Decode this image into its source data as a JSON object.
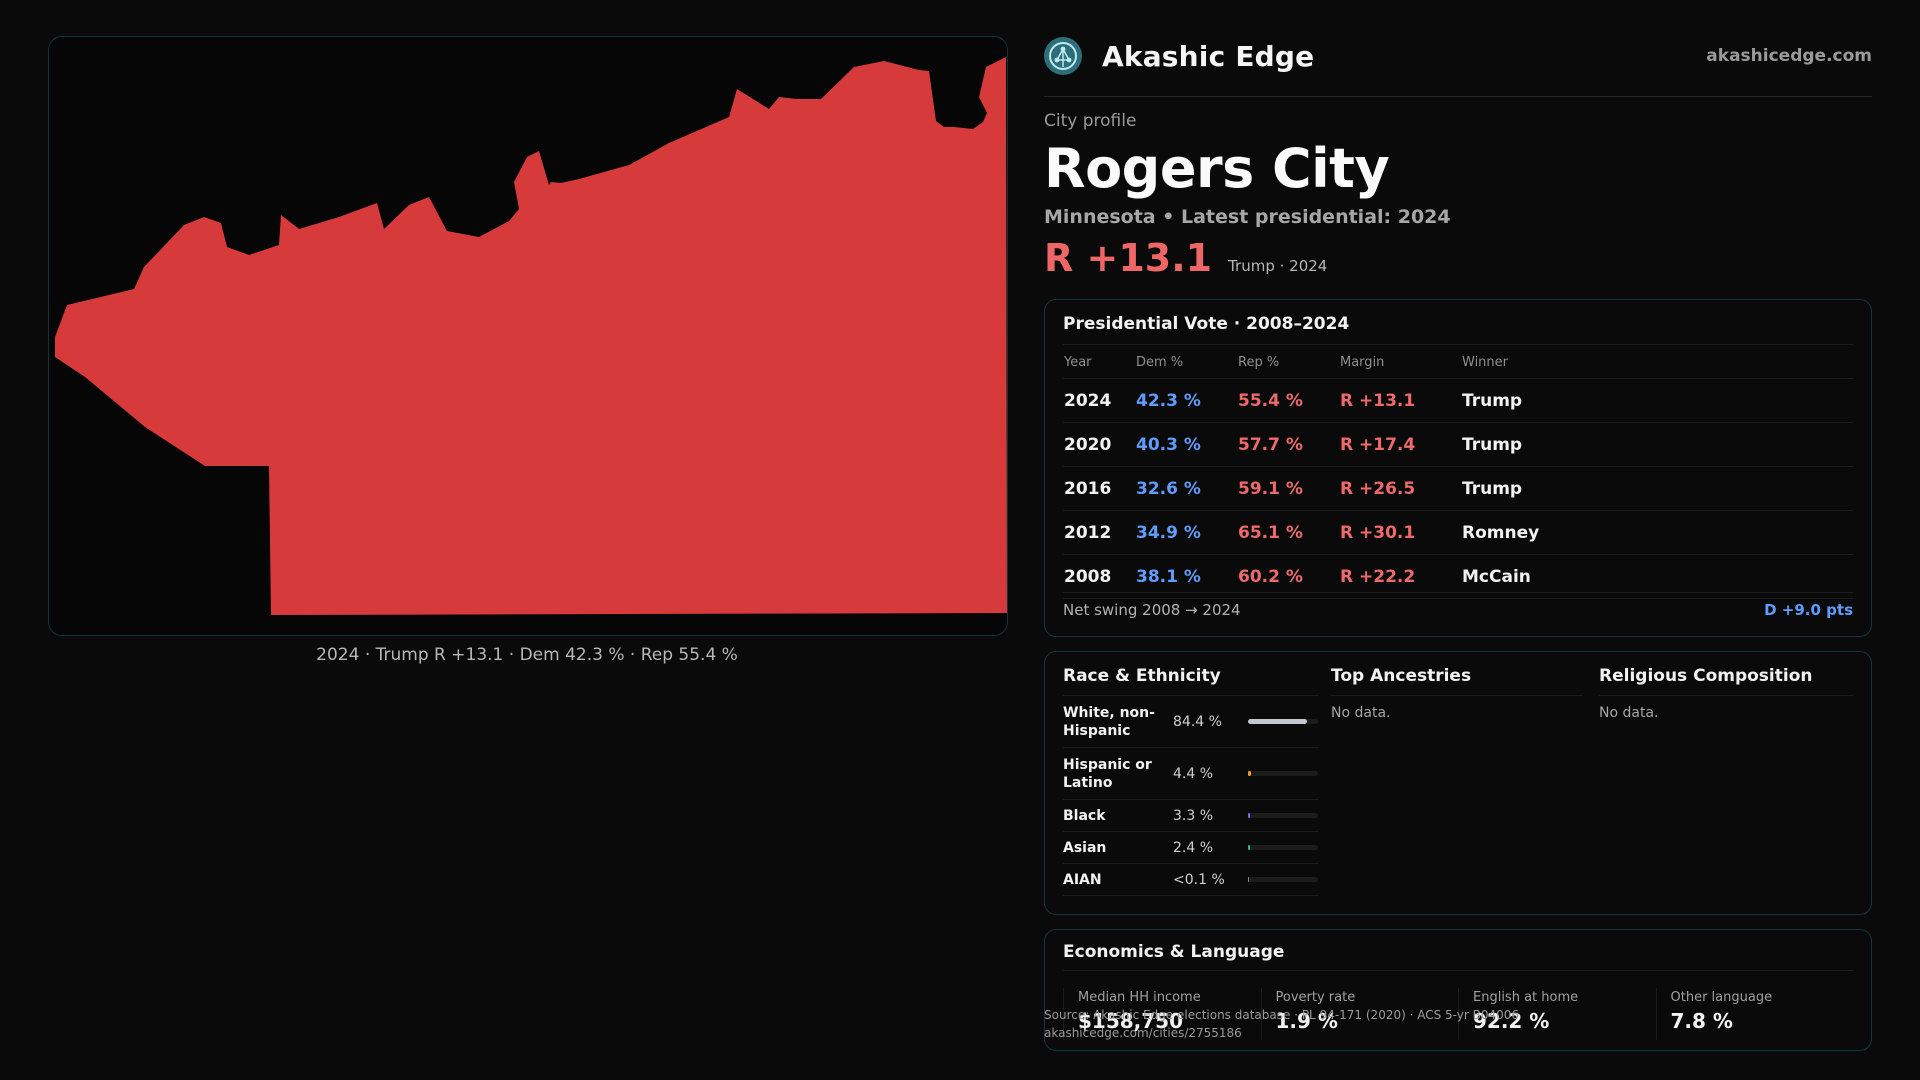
{
  "map": {
    "fill_color": "#d63a3a",
    "caption": "2024 · Trump R +13.1 · Dem 42.3 % · Rep 55.4 %"
  },
  "brand": {
    "name": "Akashic Edge",
    "url": "akashicedge.com",
    "logo_icon": "network-globe-icon"
  },
  "profile": {
    "kicker": "City profile",
    "name": "Rogers City",
    "subline": "Minnesota • Latest presidential: 2024",
    "margin": "R +13.1",
    "margin_sub": "Trump · 2024"
  },
  "vote_card": {
    "title": "Presidential Vote · 2008–2024",
    "headers": [
      "Year",
      "Dem %",
      "Rep %",
      "Margin",
      "Winner"
    ],
    "rows": [
      [
        "2024",
        "42.3 %",
        "55.4 %",
        "R +13.1",
        "Trump"
      ],
      [
        "2020",
        "40.3 %",
        "57.7 %",
        "R +17.4",
        "Trump"
      ],
      [
        "2016",
        "32.6 %",
        "59.1 %",
        "R +26.5",
        "Trump"
      ],
      [
        "2012",
        "34.9 %",
        "65.1 %",
        "R +30.1",
        "Romney"
      ],
      [
        "2008",
        "38.1 %",
        "60.2 %",
        "R +22.2",
        "McCain"
      ]
    ],
    "swing_label": "Net swing 2008 → 2024",
    "swing_value": "D +9.0 pts"
  },
  "race": {
    "title": "Race & Ethnicity",
    "rows": [
      {
        "label": "White, non-Hispanic",
        "pct": "84.4 %",
        "share": 0.844,
        "color": "#c2c8d0"
      },
      {
        "label": "Hispanic or Latino",
        "pct": "4.4 %",
        "share": 0.044,
        "color": "#f0a020"
      },
      {
        "label": "Black",
        "pct": "3.3 %",
        "share": 0.033,
        "color": "#6b6bff"
      },
      {
        "label": "Asian",
        "pct": "2.4 %",
        "share": 0.024,
        "color": "#26b89a"
      },
      {
        "label": "AIAN",
        "pct": "<0.1 %",
        "share": 0.001,
        "color": "#888888"
      }
    ]
  },
  "ancestries": {
    "title": "Top Ancestries",
    "empty": "No data."
  },
  "religion": {
    "title": "Religious Composition",
    "empty": "No data."
  },
  "economics": {
    "title": "Economics & Language",
    "stats": [
      {
        "label": "Median HH income",
        "value": "$158,750"
      },
      {
        "label": "Poverty rate",
        "value": "1.9 %"
      },
      {
        "label": "English at home",
        "value": "92.2 %"
      },
      {
        "label": "Other language",
        "value": "7.8 %"
      }
    ]
  },
  "source": {
    "line1": "Source: Akashic Edge elections database · PL 94-171 (2020) · ACS 5-yr B04006",
    "line2": "akashicedge.com/cities/2755186"
  }
}
